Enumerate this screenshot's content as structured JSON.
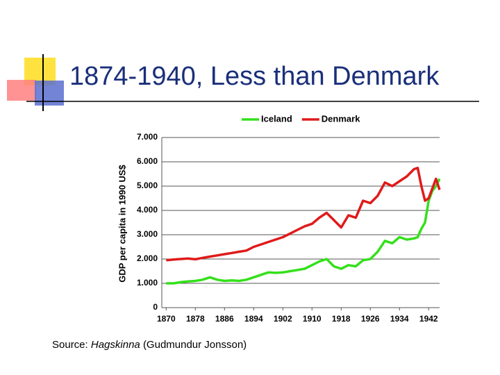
{
  "chart_data": {
    "type": "line",
    "title": "1874-1940, Less than Denmark",
    "ylabel": "GDP per capita in 1990 US$",
    "x": [
      1870,
      1872,
      1874,
      1876,
      1878,
      1880,
      1882,
      1884,
      1886,
      1888,
      1890,
      1892,
      1894,
      1896,
      1898,
      1900,
      1902,
      1904,
      1906,
      1908,
      1910,
      1912,
      1914,
      1916,
      1918,
      1920,
      1922,
      1924,
      1926,
      1928,
      1930,
      1932,
      1934,
      1936,
      1938,
      1939,
      1940,
      1941,
      1942,
      1943,
      1944,
      1945
    ],
    "series": [
      {
        "name": "Iceland",
        "color": "#33e01a",
        "values": [
          1000,
          1000,
          1050,
          1080,
          1100,
          1150,
          1250,
          1150,
          1100,
          1120,
          1100,
          1150,
          1250,
          1350,
          1450,
          1430,
          1450,
          1500,
          1550,
          1600,
          1750,
          1900,
          2000,
          1700,
          1600,
          1750,
          1700,
          1950,
          2000,
          2300,
          2750,
          2650,
          2900,
          2800,
          2850,
          2900,
          3250,
          3500,
          4400,
          4800,
          5000,
          5300
        ]
      },
      {
        "name": "Denmark",
        "color": "#e01a1a",
        "values": [
          1950,
          1980,
          2000,
          2020,
          1990,
          2050,
          2100,
          2150,
          2200,
          2250,
          2300,
          2350,
          2500,
          2600,
          2700,
          2800,
          2900,
          3050,
          3200,
          3350,
          3450,
          3700,
          3900,
          3600,
          3300,
          3800,
          3700,
          4400,
          4300,
          4600,
          5150,
          5000,
          5200,
          5400,
          5700,
          5750,
          5000,
          4400,
          4500,
          4900,
          5300,
          4850
        ]
      }
    ],
    "xlim": [
      1868.8,
      1945
    ],
    "xticks": [
      1870,
      1878,
      1886,
      1894,
      1902,
      1910,
      1918,
      1926,
      1934,
      1942
    ],
    "ylim": [
      0,
      7000
    ],
    "yticks": [
      0,
      {
        "value": 1000,
        "label": "1.000"
      },
      {
        "value": 2000,
        "label": "2.000"
      },
      {
        "value": 3000,
        "label": "3.000"
      },
      {
        "value": 4000,
        "label": "4.000"
      },
      {
        "value": 5000,
        "label": "5.000"
      },
      {
        "value": 6000,
        "label": "6.000"
      },
      {
        "value": 7000,
        "label": "7.000"
      }
    ],
    "grid": true,
    "legend": "top"
  },
  "source": {
    "prefix": "Source:",
    "work": "Hagskinna",
    "author": "(Gudmundur Jonsson)"
  }
}
